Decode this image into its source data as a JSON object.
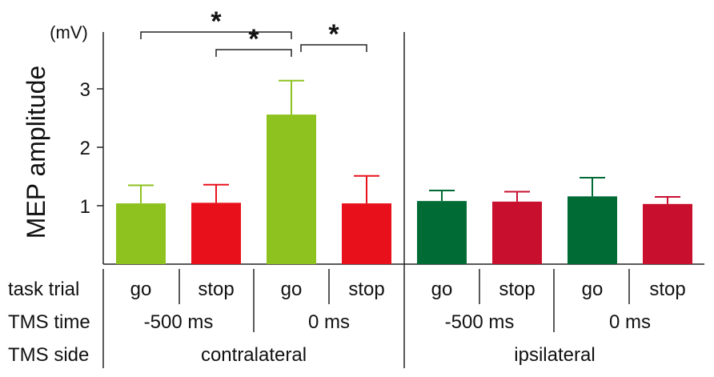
{
  "chart_data": {
    "type": "bar",
    "ylabel": "MEP amplitude",
    "yunit": "(mV)",
    "ylim": [
      0,
      4
    ],
    "yticks": [
      "1",
      "2",
      "3"
    ],
    "bars": [
      {
        "task": "go",
        "time": "-500 ms",
        "side": "contralateral",
        "value": 1.04,
        "error": 0.31,
        "color": "#8dc21f"
      },
      {
        "task": "stop",
        "time": "-500 ms",
        "side": "contralateral",
        "value": 1.05,
        "error": 0.31,
        "color": "#e8111b"
      },
      {
        "task": "go",
        "time": "0 ms",
        "side": "contralateral",
        "value": 2.56,
        "error": 0.58,
        "color": "#8dc21f"
      },
      {
        "task": "stop",
        "time": "0 ms",
        "side": "contralateral",
        "value": 1.04,
        "error": 0.47,
        "color": "#e8111b"
      },
      {
        "task": "go",
        "time": "-500 ms",
        "side": "ipsilateral",
        "value": 1.08,
        "error": 0.18,
        "color": "#006b35"
      },
      {
        "task": "stop",
        "time": "-500 ms",
        "side": "ipsilateral",
        "value": 1.07,
        "error": 0.17,
        "color": "#c8102e"
      },
      {
        "task": "go",
        "time": "0 ms",
        "side": "ipsilateral",
        "value": 1.16,
        "error": 0.32,
        "color": "#006b35"
      },
      {
        "task": "stop",
        "time": "0 ms",
        "side": "ipsilateral",
        "value": 1.03,
        "error": 0.12,
        "color": "#c8102e"
      }
    ],
    "significance": [
      {
        "from": 0,
        "to": 2,
        "label": "*"
      },
      {
        "from": 1,
        "to": 2,
        "label": "*"
      },
      {
        "from": 2,
        "to": 3,
        "label": "*"
      }
    ],
    "row_labels": {
      "task": "task trial",
      "time": "TMS time",
      "side": "TMS side"
    },
    "time_groups": [
      "-500 ms",
      "0 ms",
      "-500 ms",
      "0 ms"
    ],
    "side_groups": [
      "contralateral",
      "ipsilateral"
    ]
  }
}
